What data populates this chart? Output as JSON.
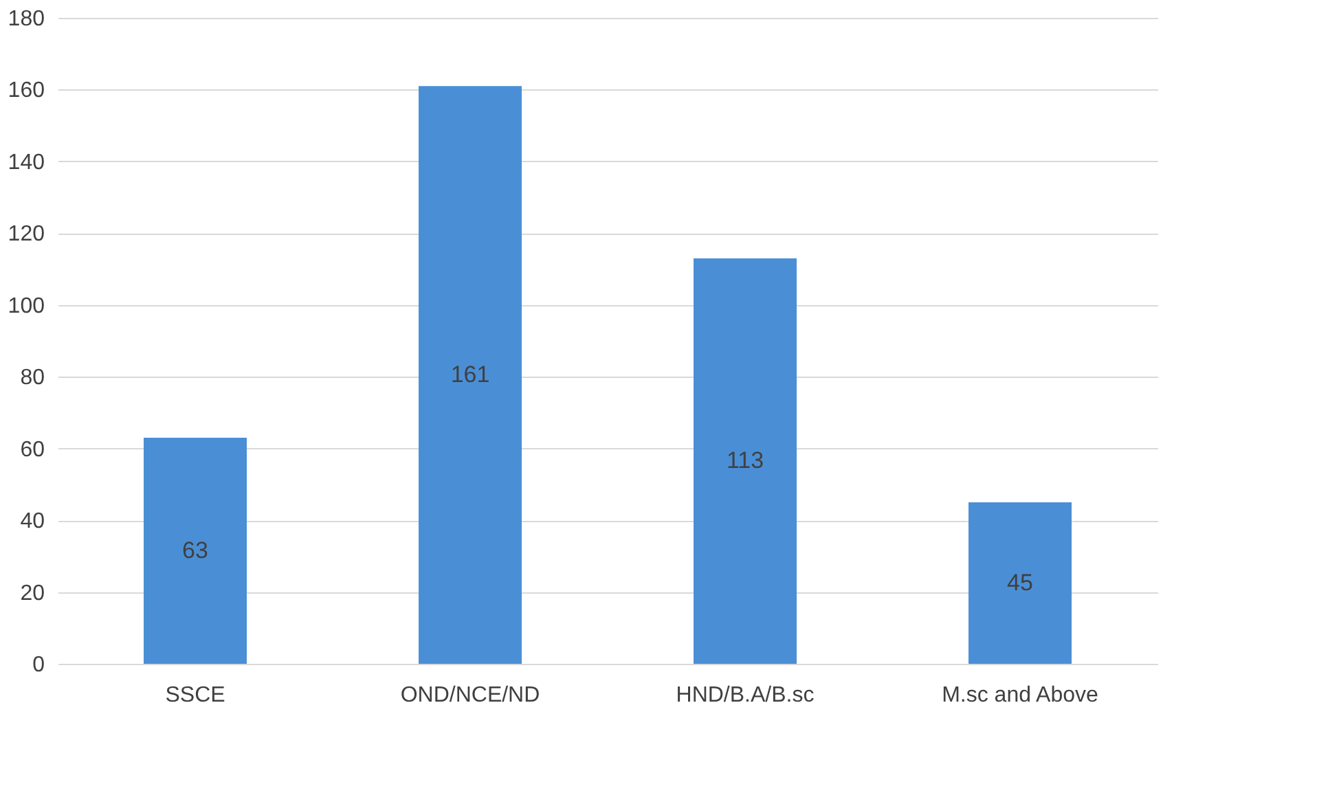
{
  "chart_data": {
    "type": "bar",
    "categories": [
      "SSCE",
      "OND/NCE/ND",
      "HND/B.A/B.sc",
      "M.sc and Above"
    ],
    "values": [
      63,
      161,
      113,
      45
    ],
    "color": "#4a8fd6",
    "ylim": [
      0,
      180
    ],
    "yticks": [
      0,
      20,
      40,
      60,
      80,
      100,
      120,
      140,
      160,
      180
    ],
    "grid": "y",
    "data_labels": true
  }
}
